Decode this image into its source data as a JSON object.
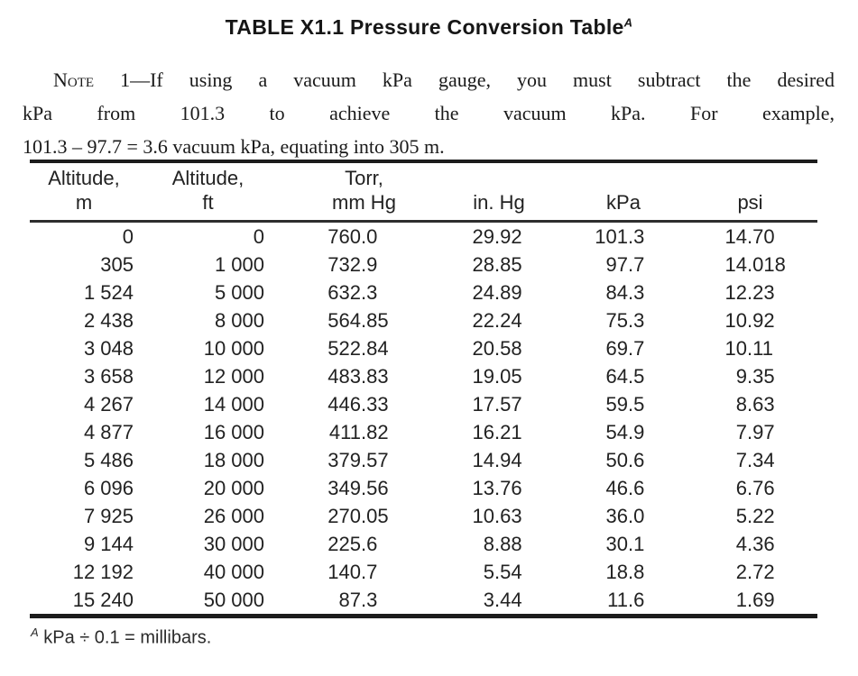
{
  "title": {
    "text": "TABLE X1.1 Pressure Conversion Table",
    "marker": "A"
  },
  "note": {
    "label": "Note",
    "line1_rest": "1—If using a vacuum kPa gauge, you must subtract the desired",
    "line2": "kPa from 101.3 to achieve the vacuum kPa. For example,",
    "line3": "101.3 – 97.7 = 3.6 vacuum kPa, equating into 305 m."
  },
  "table": {
    "columns": [
      {
        "line1": "Altitude,",
        "line2": "m"
      },
      {
        "line1": "Altitude,",
        "line2": "ft"
      },
      {
        "line1": "Torr,",
        "line2": "mm Hg"
      },
      {
        "line1": "",
        "line2": "in. Hg"
      },
      {
        "line1": "",
        "line2": "kPa"
      },
      {
        "line1": "",
        "line2": "psi"
      }
    ],
    "rows": [
      [
        "0",
        "0",
        "760.0",
        "29.92",
        "101.3",
        "14.70"
      ],
      [
        "305",
        "1 000",
        "732.9",
        "28.85",
        "97.7",
        "14.018"
      ],
      [
        "1 524",
        "5 000",
        "632.3",
        "24.89",
        "84.3",
        "12.23"
      ],
      [
        "2 438",
        "8 000",
        "564.85",
        "22.24",
        "75.3",
        "10.92"
      ],
      [
        "3 048",
        "10 000",
        "522.84",
        "20.58",
        "69.7",
        "10.11"
      ],
      [
        "3 658",
        "12 000",
        "483.83",
        "19.05",
        "64.5",
        "9.35"
      ],
      [
        "4 267",
        "14 000",
        "446.33",
        "17.57",
        "59.5",
        "8.63"
      ],
      [
        "4 877",
        "16 000",
        "411.82",
        "16.21",
        "54.9",
        "7.97"
      ],
      [
        "5 486",
        "18 000",
        "379.57",
        "14.94",
        "50.6",
        "7.34"
      ],
      [
        "6 096",
        "20 000",
        "349.56",
        "13.76",
        "46.6",
        "6.76"
      ],
      [
        "7 925",
        "26 000",
        "270.05",
        "10.63",
        "36.0",
        "5.22"
      ],
      [
        "9 144",
        "30 000",
        "225.6",
        "8.88",
        "30.1",
        "4.36"
      ],
      [
        "12 192",
        "40 000",
        "140.7",
        "5.54",
        "18.8",
        "2.72"
      ],
      [
        "15 240",
        "50 000",
        "87.3",
        "3.44",
        "11.6",
        "1.69"
      ]
    ]
  },
  "footnote": {
    "marker": "A",
    "text": "kPa ÷ 0.1 = millibars."
  },
  "colors": {
    "background": "#ffffff",
    "text": "#1a1a1a",
    "rule": "#1c1c1c"
  }
}
